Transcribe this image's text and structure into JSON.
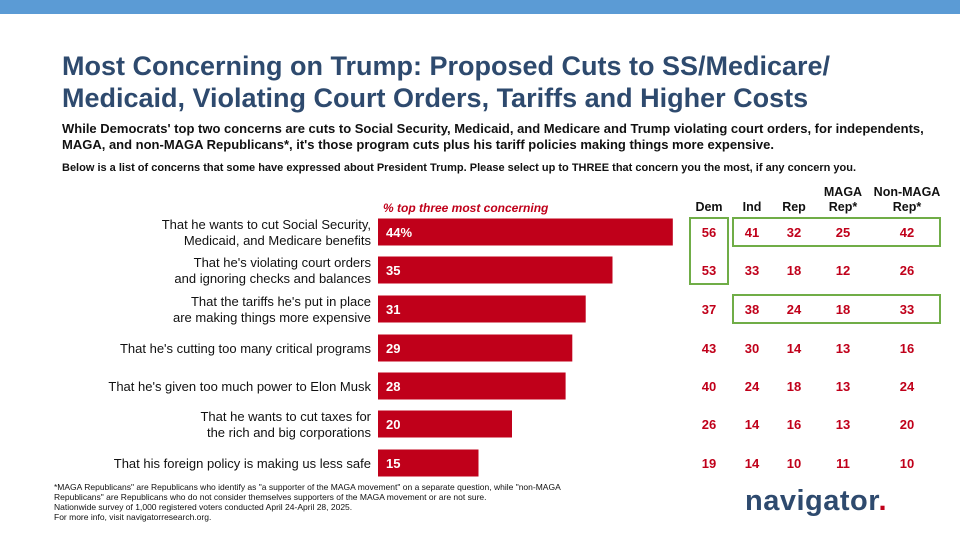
{
  "header": {
    "title_line1": "Most Concerning on Trump: Proposed Cuts to SS/Medicare/",
    "title_line2": "Medicaid, Violating Court Orders, Tariffs and Higher Costs",
    "subtitle": "While Democrats' top two concerns are cuts to Social Security, Medicaid, and Medicare and Trump violating court orders, for independents, MAGA, and non-MAGA Republicans*, it's those program cuts plus his tariff policies making things more expensive.",
    "question": "Below is a list of concerns that some have expressed about President Trump. Please select up to THREE that concern you the most, if any concern you."
  },
  "chart_data": {
    "type": "bar",
    "orientation": "horizontal",
    "bar_label": "% top three most concerning",
    "bar_color": "#c0001a",
    "xlim": [
      0,
      100
    ],
    "categories": [
      [
        "That he wants to cut Social Security,",
        "Medicaid, and Medicare benefits"
      ],
      [
        "That he's violating court orders",
        "and ignoring checks and balances"
      ],
      [
        "That the tariffs he's put in place",
        "are making things more expensive"
      ],
      [
        "That he's cutting too many critical programs"
      ],
      [
        "That he's given too much power to Elon Musk"
      ],
      [
        "That he wants to cut taxes for",
        "the rich and big corporations"
      ],
      [
        "That his foreign policy is making us less safe"
      ]
    ],
    "values": [
      44,
      35,
      31,
      29,
      28,
      20,
      15
    ],
    "value_labels": [
      "44%",
      "35",
      "31",
      "29",
      "28",
      "20",
      "15"
    ],
    "table": {
      "columns": [
        {
          "lines": [
            "Dem"
          ],
          "color": "#c0001a"
        },
        {
          "lines": [
            "Ind"
          ],
          "color": "#c0001a"
        },
        {
          "lines": [
            "Rep"
          ],
          "color": "#c0001a"
        },
        {
          "lines": [
            "MAGA",
            "Rep*"
          ],
          "color": "#c0001a"
        },
        {
          "lines": [
            "Non-MAGA",
            "Rep*"
          ],
          "color": "#c0001a"
        }
      ],
      "rows": [
        [
          56,
          41,
          32,
          25,
          42
        ],
        [
          53,
          33,
          18,
          12,
          26
        ],
        [
          37,
          38,
          24,
          18,
          33
        ],
        [
          43,
          30,
          14,
          13,
          16
        ],
        [
          40,
          24,
          18,
          13,
          24
        ],
        [
          26,
          14,
          16,
          13,
          20
        ],
        [
          19,
          14,
          10,
          11,
          10
        ]
      ],
      "highlights": [
        {
          "column_start": 0,
          "column_end": 0,
          "row_start": 0,
          "row_end": 1,
          "color": "#70ad47"
        },
        {
          "column_start": 1,
          "column_end": 4,
          "row_start": 0,
          "row_end": 0,
          "color": "#70ad47"
        },
        {
          "column_start": 1,
          "column_end": 4,
          "row_start": 2,
          "row_end": 2,
          "color": "#70ad47"
        }
      ]
    }
  },
  "footnote": {
    "lines": [
      "*MAGA Republicans\" are Republicans who identify as \"a supporter of the MAGA movement\" on a separate question, while \"non-MAGA",
      "Republicans\" are Republicans who do not consider themselves supporters of the MAGA movement or are not sure.",
      "Nationwide survey of 1,000 registered voters conducted April 24-April 28, 2025.",
      "For more info, visit navigatorresearch.org."
    ]
  },
  "logo": {
    "text": "navigator",
    "dot": "."
  }
}
